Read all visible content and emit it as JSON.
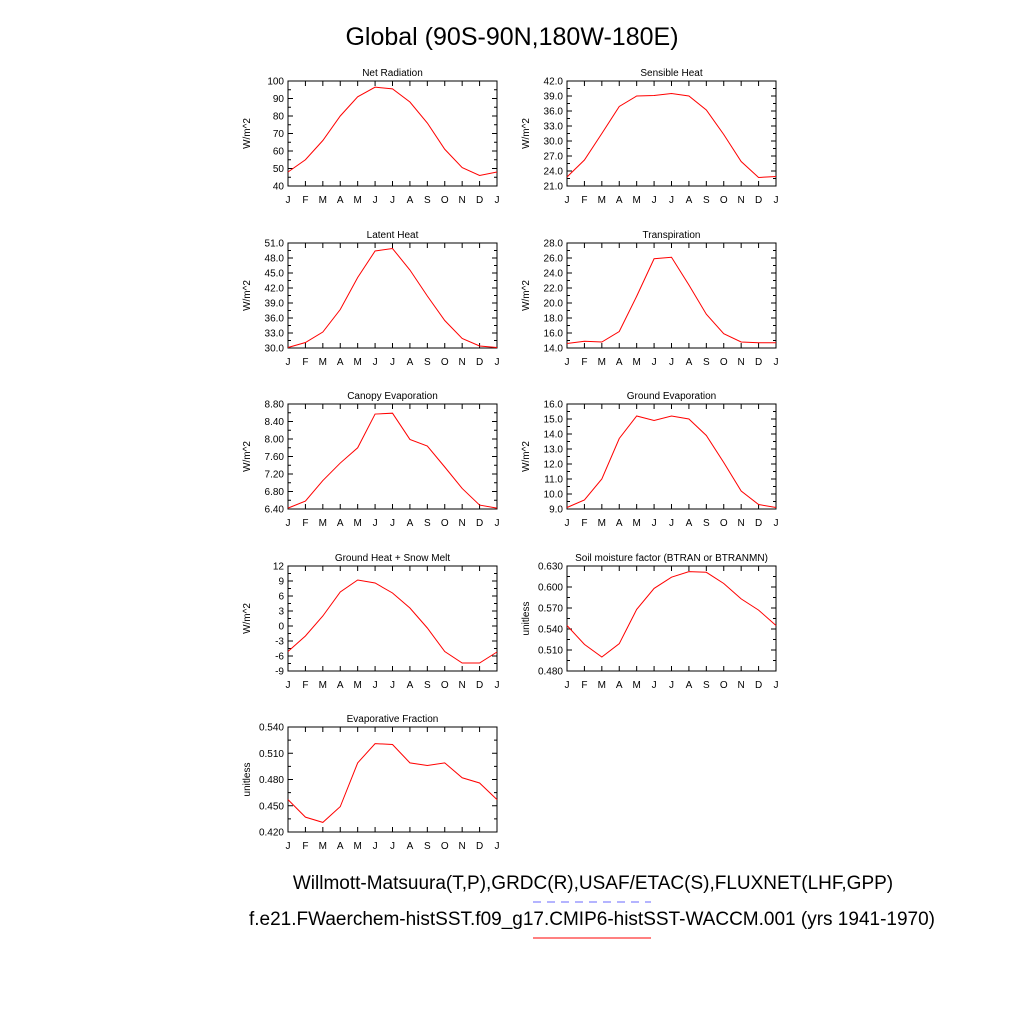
{
  "title": "Global (90S-90N,180W-180E)",
  "months": [
    "J",
    "F",
    "M",
    "A",
    "M",
    "J",
    "J",
    "A",
    "S",
    "O",
    "N",
    "D",
    "J"
  ],
  "legend": {
    "obs_label": "Willmott-Matsuura(T,P),GRDC(R),USAF/ETAC(S),FLUXNET(LHF,GPP)",
    "obs_color": "#6a6aff",
    "model_label": "f.e21.FWaerchem-histSST.f09_g17.CMIP6-histSST-WACCM.001 (yrs 1941-1970)",
    "model_color": "#ff0000"
  },
  "chart_data": [
    {
      "type": "line",
      "title": "Net Radiation",
      "ylabel": "W/m^2",
      "ylim": [
        40,
        100
      ],
      "yticks": [
        "40",
        "50",
        "60",
        "70",
        "80",
        "90",
        "100"
      ],
      "x": [
        1,
        2,
        3,
        4,
        5,
        6,
        7,
        8,
        9,
        10,
        11,
        12,
        13
      ],
      "series": [
        {
          "values": [
            48,
            55,
            66,
            80,
            91,
            96.5,
            95.5,
            88,
            76,
            61,
            50.5,
            46,
            48
          ],
          "color": "#ff0000"
        }
      ]
    },
    {
      "type": "line",
      "title": "Sensible Heat",
      "ylabel": "W/m^2",
      "ylim": [
        21,
        42
      ],
      "yticks": [
        "21.0",
        "24.0",
        "27.0",
        "30.0",
        "33.0",
        "36.0",
        "39.0",
        "42.0"
      ],
      "x": [
        1,
        2,
        3,
        4,
        5,
        6,
        7,
        8,
        9,
        10,
        11,
        12,
        13
      ],
      "series": [
        {
          "values": [
            22.8,
            26.2,
            31.5,
            36.9,
            39.0,
            39.1,
            39.5,
            39.0,
            36.2,
            31.3,
            25.9,
            22.7,
            22.9
          ],
          "color": "#ff0000"
        }
      ]
    },
    {
      "type": "line",
      "title": "Latent Heat",
      "ylabel": "W/m^2",
      "ylim": [
        30,
        51
      ],
      "yticks": [
        "30.0",
        "33.0",
        "36.0",
        "39.0",
        "42.0",
        "45.0",
        "48.0",
        "51.0"
      ],
      "x": [
        1,
        2,
        3,
        4,
        5,
        6,
        7,
        8,
        9,
        10,
        11,
        12,
        13
      ],
      "series": [
        {
          "values": [
            30.1,
            31.1,
            33.2,
            37.7,
            44.1,
            49.4,
            49.9,
            45.6,
            40.4,
            35.5,
            31.9,
            30.4,
            30.1
          ],
          "color": "#ff0000"
        }
      ]
    },
    {
      "type": "line",
      "title": "Transpiration",
      "ylabel": "W/m^2",
      "ylim": [
        14,
        28
      ],
      "yticks": [
        "14.0",
        "16.0",
        "18.0",
        "20.0",
        "22.0",
        "24.0",
        "26.0",
        "28.0"
      ],
      "x": [
        1,
        2,
        3,
        4,
        5,
        6,
        7,
        8,
        9,
        10,
        11,
        12,
        13
      ],
      "series": [
        {
          "values": [
            14.6,
            14.9,
            14.8,
            16.2,
            20.9,
            25.9,
            26.1,
            22.4,
            18.5,
            15.9,
            14.8,
            14.7,
            14.7
          ],
          "color": "#ff0000"
        }
      ]
    },
    {
      "type": "line",
      "title": "Canopy Evaporation",
      "ylabel": "W/m^2",
      "ylim": [
        6.4,
        8.8
      ],
      "yticks": [
        "6.40",
        "6.80",
        "7.20",
        "7.60",
        "8.00",
        "8.40",
        "8.80"
      ],
      "x": [
        1,
        2,
        3,
        4,
        5,
        6,
        7,
        8,
        9,
        10,
        11,
        12,
        13
      ],
      "series": [
        {
          "values": [
            6.42,
            6.58,
            7.05,
            7.45,
            7.8,
            8.57,
            8.59,
            7.99,
            7.84,
            7.36,
            6.87,
            6.49,
            6.42
          ],
          "color": "#ff0000"
        }
      ]
    },
    {
      "type": "line",
      "title": "Ground Evaporation",
      "ylabel": "W/m^2",
      "ylim": [
        9,
        16
      ],
      "yticks": [
        "9.0",
        "10.0",
        "11.0",
        "12.0",
        "13.0",
        "14.0",
        "15.0",
        "16.0"
      ],
      "x": [
        1,
        2,
        3,
        4,
        5,
        6,
        7,
        8,
        9,
        10,
        11,
        12,
        13
      ],
      "series": [
        {
          "values": [
            9.1,
            9.6,
            11.0,
            13.7,
            15.2,
            14.9,
            15.2,
            15.0,
            13.9,
            12.1,
            10.2,
            9.3,
            9.1
          ],
          "color": "#ff0000"
        }
      ]
    },
    {
      "type": "line",
      "title": "Ground Heat + Snow Melt",
      "ylabel": "W/m^2",
      "ylim": [
        -9,
        12
      ],
      "yticks": [
        "-9",
        "-6",
        "-3",
        "0",
        "3",
        "6",
        "9",
        "12"
      ],
      "x": [
        1,
        2,
        3,
        4,
        5,
        6,
        7,
        8,
        9,
        10,
        11,
        12,
        13
      ],
      "series": [
        {
          "values": [
            -5.1,
            -2.0,
            2.0,
            6.8,
            9.2,
            8.6,
            6.6,
            3.6,
            -0.4,
            -5.1,
            -7.4,
            -7.4,
            -5.2
          ],
          "color": "#ff0000"
        }
      ]
    },
    {
      "type": "line",
      "title": "Soil moisture factor (BTRAN or BTRANMN)",
      "ylabel": "unitless",
      "ylim": [
        0.48,
        0.63
      ],
      "yticks": [
        "0.480",
        "0.510",
        "0.540",
        "0.570",
        "0.600",
        "0.630"
      ],
      "x": [
        1,
        2,
        3,
        4,
        5,
        6,
        7,
        8,
        9,
        10,
        11,
        12,
        13
      ],
      "series": [
        {
          "values": [
            0.545,
            0.518,
            0.5,
            0.519,
            0.568,
            0.598,
            0.614,
            0.622,
            0.621,
            0.605,
            0.583,
            0.567,
            0.545
          ],
          "color": "#ff0000"
        }
      ]
    },
    {
      "type": "line",
      "title": "Evaporative Fraction",
      "ylabel": "unitless",
      "ylim": [
        0.42,
        0.54
      ],
      "yticks": [
        "0.420",
        "0.450",
        "0.480",
        "0.510",
        "0.540"
      ],
      "x": [
        1,
        2,
        3,
        4,
        5,
        6,
        7,
        8,
        9,
        10,
        11,
        12,
        13
      ],
      "series": [
        {
          "values": [
            0.457,
            0.437,
            0.431,
            0.449,
            0.499,
            0.521,
            0.52,
            0.499,
            0.496,
            0.499,
            0.482,
            0.476,
            0.457
          ],
          "color": "#ff0000"
        }
      ]
    }
  ]
}
